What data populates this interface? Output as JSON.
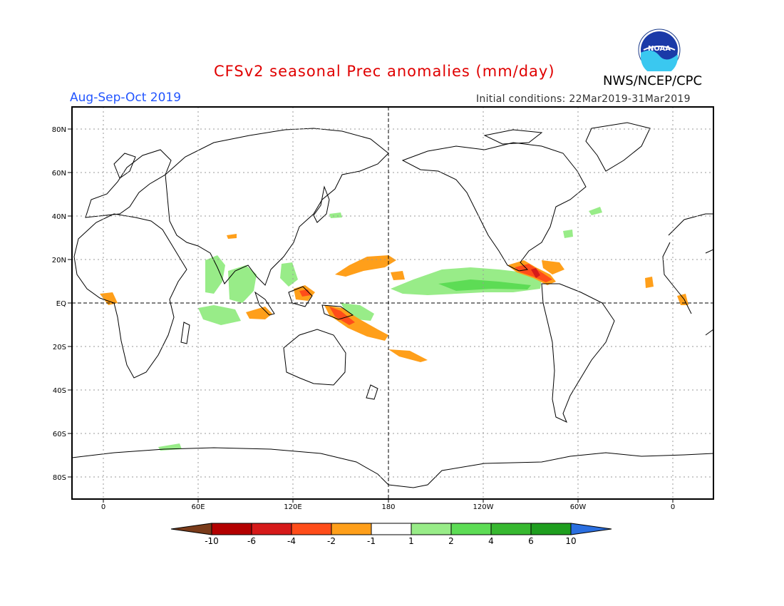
{
  "title": "CFSv2 seasonal Prec anomalies (mm/day)",
  "period": "Aug-Sep-Oct 2019",
  "initial_conditions": "Initial conditions: 22Mar2019-31Mar2019",
  "agency": "NWS/NCEP/CPC",
  "logo_text": "NOAA",
  "lat_labels": [
    "80N",
    "60N",
    "40N",
    "20N",
    "EQ",
    "20S",
    "40S",
    "60S",
    "80S"
  ],
  "lon_labels": [
    "0",
    "60E",
    "120E",
    "180",
    "120W",
    "60W",
    "0"
  ],
  "colorbar": {
    "labels": [
      "-10",
      "-6",
      "-4",
      "-2",
      "-1",
      "1",
      "2",
      "4",
      "6",
      "10"
    ],
    "colors": [
      "#7a3b1a",
      "#b30000",
      "#d61a1a",
      "#ff4d1a",
      "#ff9f1a",
      "#ffffff",
      "#98ec88",
      "#5ddc55",
      "#37b830",
      "#1f9e1f",
      "#2b6fe0"
    ]
  }
}
